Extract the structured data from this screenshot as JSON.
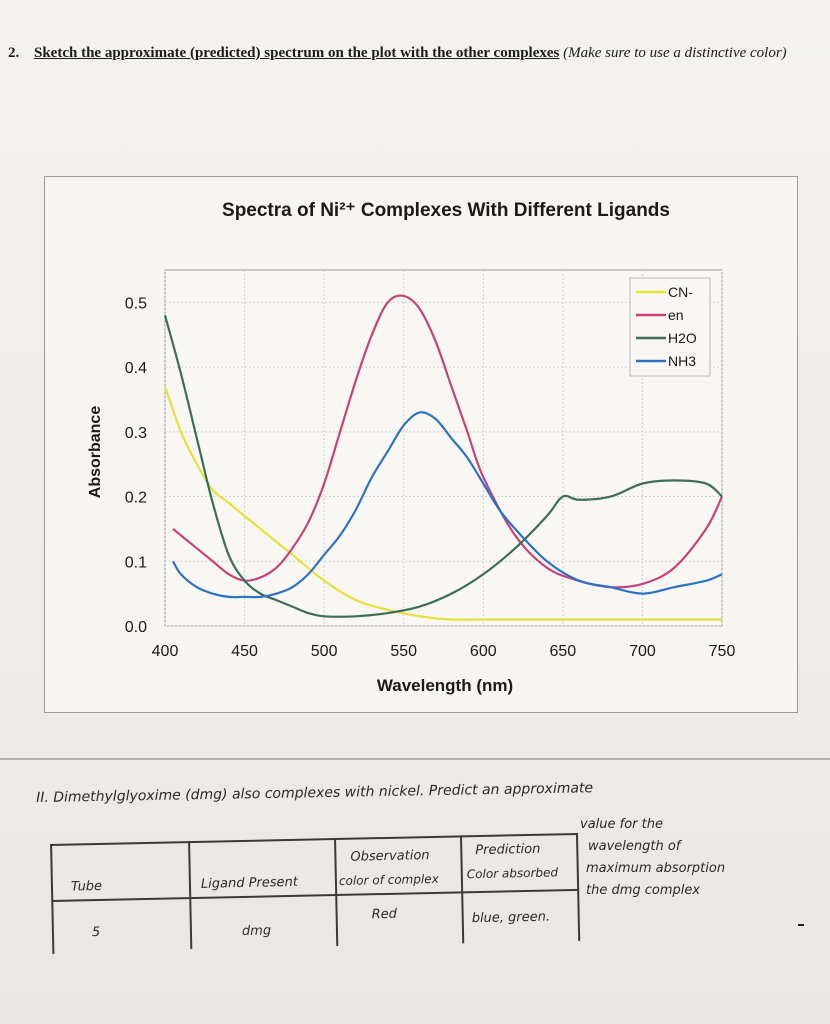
{
  "question": {
    "number": "2.",
    "bold_text": "Sketch the approximate (predicted) spectrum on the plot with the other complexes",
    "italic_text": "(Make sure to use a distinctive color)"
  },
  "chart_data": {
    "type": "line",
    "title": "Spectra of Ni²⁺ Complexes With Different Ligands",
    "xlabel": "Wavelength (nm)",
    "ylabel": "Absorbance",
    "xlim": [
      400,
      750
    ],
    "ylim": [
      0,
      0.55
    ],
    "x_ticks": [
      "400",
      "450",
      "500",
      "550",
      "600",
      "650",
      "700",
      "750"
    ],
    "y_ticks": [
      "0.0",
      "0.1",
      "0.2",
      "0.3",
      "0.4",
      "0.5"
    ],
    "grid": true,
    "legend_position": "top-right",
    "series": [
      {
        "name": "CN-",
        "color": "#e8e03a",
        "x": [
          400,
          410,
          420,
          430,
          440,
          460,
          480,
          500,
          520,
          540,
          560,
          580,
          600,
          650,
          700,
          750
        ],
        "y": [
          0.37,
          0.3,
          0.25,
          0.21,
          0.19,
          0.15,
          0.11,
          0.07,
          0.04,
          0.025,
          0.015,
          0.01,
          0.01,
          0.01,
          0.01,
          0.01
        ]
      },
      {
        "name": "en",
        "color": "#c8427a",
        "x": [
          405,
          420,
          430,
          440,
          450,
          460,
          470,
          480,
          490,
          500,
          510,
          520,
          530,
          540,
          550,
          560,
          570,
          580,
          590,
          600,
          620,
          640,
          660,
          680,
          700,
          720,
          740,
          750
        ],
        "y": [
          0.15,
          0.12,
          0.1,
          0.08,
          0.07,
          0.075,
          0.09,
          0.12,
          0.16,
          0.22,
          0.3,
          0.38,
          0.45,
          0.5,
          0.51,
          0.49,
          0.44,
          0.37,
          0.3,
          0.23,
          0.14,
          0.09,
          0.07,
          0.06,
          0.065,
          0.09,
          0.15,
          0.2
        ]
      },
      {
        "name": "H2O",
        "color": "#3d6e5a",
        "x": [
          400,
          410,
          420,
          430,
          440,
          450,
          460,
          470,
          480,
          490,
          500,
          520,
          540,
          560,
          580,
          600,
          620,
          640,
          650,
          660,
          680,
          700,
          720,
          740,
          750
        ],
        "y": [
          0.48,
          0.39,
          0.29,
          0.19,
          0.11,
          0.07,
          0.05,
          0.04,
          0.03,
          0.02,
          0.015,
          0.015,
          0.02,
          0.03,
          0.05,
          0.08,
          0.12,
          0.17,
          0.2,
          0.195,
          0.2,
          0.22,
          0.225,
          0.22,
          0.2
        ]
      },
      {
        "name": "NH3",
        "color": "#2f72c4",
        "x": [
          405,
          410,
          420,
          430,
          440,
          450,
          460,
          470,
          480,
          490,
          500,
          510,
          520,
          530,
          540,
          550,
          560,
          570,
          580,
          590,
          600,
          610,
          620,
          640,
          660,
          680,
          700,
          720,
          740,
          750
        ],
        "y": [
          0.1,
          0.08,
          0.06,
          0.05,
          0.045,
          0.045,
          0.045,
          0.05,
          0.06,
          0.08,
          0.11,
          0.14,
          0.18,
          0.23,
          0.27,
          0.31,
          0.33,
          0.32,
          0.29,
          0.26,
          0.22,
          0.18,
          0.15,
          0.1,
          0.07,
          0.06,
          0.05,
          0.06,
          0.07,
          0.08
        ]
      }
    ]
  },
  "part2": {
    "text": "II. Dimethylglyoxime (dmg) also complexes with nickel. Predict an approximate",
    "note_lines": [
      "value for the",
      "wavelength of",
      "maximum absorption",
      "the dmg complex"
    ]
  },
  "table": {
    "headers": {
      "tube": "Tube",
      "ligand": "Ligand Present",
      "observation_1": "Observation",
      "observation_2": "color of complex",
      "prediction_1": "Prediction",
      "prediction_2": "Color absorbed"
    },
    "row": {
      "tube": "5",
      "ligand": "dmg",
      "observation": "Red",
      "prediction": "blue, green."
    }
  }
}
